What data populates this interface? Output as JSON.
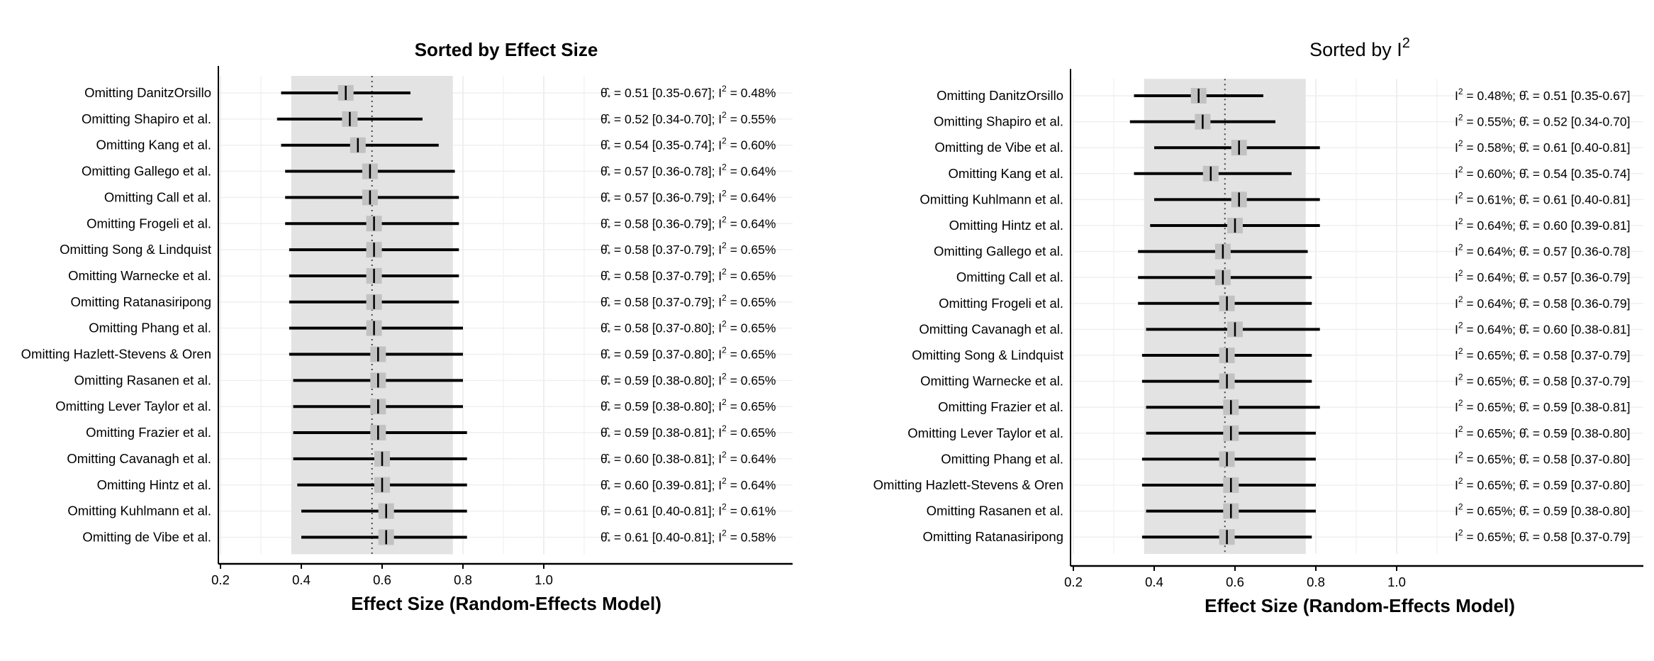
{
  "chart_data": [
    {
      "type": "forest",
      "title": "Sorted by Effect Size",
      "title_superscript": "",
      "title_bold": true,
      "xlabel": "Effect Size (Random-Effects Model)",
      "ylabel": "",
      "xlim": [
        0.2,
        1.15
      ],
      "xticks": [
        0.2,
        0.4,
        0.6,
        0.8,
        1.0
      ],
      "xtick_labels": [
        "0.2",
        "0.4",
        "0.6",
        "0.8",
        "1.0"
      ],
      "pooled_estimate": 0.575,
      "shaded_interval": [
        0.375,
        0.775
      ],
      "label_order": "theta-first",
      "rows": [
        {
          "label": "Omitting DanitzOrsillo",
          "est": 0.51,
          "lo": 0.35,
          "hi": 0.67,
          "i2": "0.48%"
        },
        {
          "label": "Omitting Shapiro et al.",
          "est": 0.52,
          "lo": 0.34,
          "hi": 0.7,
          "i2": "0.55%"
        },
        {
          "label": "Omitting Kang et al.",
          "est": 0.54,
          "lo": 0.35,
          "hi": 0.74,
          "i2": "0.60%"
        },
        {
          "label": "Omitting Gallego et al.",
          "est": 0.57,
          "lo": 0.36,
          "hi": 0.78,
          "i2": "0.64%"
        },
        {
          "label": "Omitting Call et al.",
          "est": 0.57,
          "lo": 0.36,
          "hi": 0.79,
          "i2": "0.64%"
        },
        {
          "label": "Omitting Frogeli et al.",
          "est": 0.58,
          "lo": 0.36,
          "hi": 0.79,
          "i2": "0.64%"
        },
        {
          "label": "Omitting Song & Lindquist",
          "est": 0.58,
          "lo": 0.37,
          "hi": 0.79,
          "i2": "0.65%"
        },
        {
          "label": "Omitting Warnecke et al.",
          "est": 0.58,
          "lo": 0.37,
          "hi": 0.79,
          "i2": "0.65%"
        },
        {
          "label": "Omitting Ratanasiripong",
          "est": 0.58,
          "lo": 0.37,
          "hi": 0.79,
          "i2": "0.65%"
        },
        {
          "label": "Omitting Phang et al.",
          "est": 0.58,
          "lo": 0.37,
          "hi": 0.8,
          "i2": "0.65%"
        },
        {
          "label": "Omitting Hazlett-Stevens & Oren",
          "est": 0.59,
          "lo": 0.37,
          "hi": 0.8,
          "i2": "0.65%"
        },
        {
          "label": "Omitting Rasanen et al.",
          "est": 0.59,
          "lo": 0.38,
          "hi": 0.8,
          "i2": "0.65%"
        },
        {
          "label": "Omitting Lever Taylor et al.",
          "est": 0.59,
          "lo": 0.38,
          "hi": 0.8,
          "i2": "0.65%"
        },
        {
          "label": "Omitting Frazier et al.",
          "est": 0.59,
          "lo": 0.38,
          "hi": 0.81,
          "i2": "0.65%"
        },
        {
          "label": "Omitting Cavanagh et al.",
          "est": 0.6,
          "lo": 0.38,
          "hi": 0.81,
          "i2": "0.64%"
        },
        {
          "label": "Omitting Hintz et al.",
          "est": 0.6,
          "lo": 0.39,
          "hi": 0.81,
          "i2": "0.64%"
        },
        {
          "label": "Omitting Kuhlmann et al.",
          "est": 0.61,
          "lo": 0.4,
          "hi": 0.81,
          "i2": "0.61%"
        },
        {
          "label": "Omitting de Vibe et al.",
          "est": 0.61,
          "lo": 0.4,
          "hi": 0.81,
          "i2": "0.58%"
        }
      ]
    },
    {
      "type": "forest",
      "title": "Sorted by I",
      "title_superscript": "2",
      "title_bold": false,
      "xlabel": "Effect Size (Random-Effects Model)",
      "ylabel": "",
      "xlim": [
        0.2,
        1.15
      ],
      "xticks": [
        0.2,
        0.4,
        0.6,
        0.8,
        1.0
      ],
      "xtick_labels": [
        "0.2",
        "0.4",
        "0.6",
        "0.8",
        "1.0"
      ],
      "pooled_estimate": 0.575,
      "shaded_interval": [
        0.375,
        0.775
      ],
      "label_order": "i2-first",
      "rows": [
        {
          "label": "Omitting DanitzOrsillo",
          "est": 0.51,
          "lo": 0.35,
          "hi": 0.67,
          "i2": "0.48%"
        },
        {
          "label": "Omitting Shapiro et al.",
          "est": 0.52,
          "lo": 0.34,
          "hi": 0.7,
          "i2": "0.55%"
        },
        {
          "label": "Omitting de Vibe et al.",
          "est": 0.61,
          "lo": 0.4,
          "hi": 0.81,
          "i2": "0.58%"
        },
        {
          "label": "Omitting Kang et al.",
          "est": 0.54,
          "lo": 0.35,
          "hi": 0.74,
          "i2": "0.60%"
        },
        {
          "label": "Omitting Kuhlmann et al.",
          "est": 0.61,
          "lo": 0.4,
          "hi": 0.81,
          "i2": "0.61%"
        },
        {
          "label": "Omitting Hintz et al.",
          "est": 0.6,
          "lo": 0.39,
          "hi": 0.81,
          "i2": "0.64%"
        },
        {
          "label": "Omitting Gallego et al.",
          "est": 0.57,
          "lo": 0.36,
          "hi": 0.78,
          "i2": "0.64%"
        },
        {
          "label": "Omitting Call et al.",
          "est": 0.57,
          "lo": 0.36,
          "hi": 0.79,
          "i2": "0.64%"
        },
        {
          "label": "Omitting Frogeli et al.",
          "est": 0.58,
          "lo": 0.36,
          "hi": 0.79,
          "i2": "0.64%"
        },
        {
          "label": "Omitting Cavanagh et al.",
          "est": 0.6,
          "lo": 0.38,
          "hi": 0.81,
          "i2": "0.64%"
        },
        {
          "label": "Omitting Song & Lindquist",
          "est": 0.58,
          "lo": 0.37,
          "hi": 0.79,
          "i2": "0.65%"
        },
        {
          "label": "Omitting Warnecke et al.",
          "est": 0.58,
          "lo": 0.37,
          "hi": 0.79,
          "i2": "0.65%"
        },
        {
          "label": "Omitting Frazier et al.",
          "est": 0.59,
          "lo": 0.38,
          "hi": 0.81,
          "i2": "0.65%"
        },
        {
          "label": "Omitting Lever Taylor et al.",
          "est": 0.59,
          "lo": 0.38,
          "hi": 0.8,
          "i2": "0.65%"
        },
        {
          "label": "Omitting Phang et al.",
          "est": 0.58,
          "lo": 0.37,
          "hi": 0.8,
          "i2": "0.65%"
        },
        {
          "label": "Omitting Hazlett-Stevens & Oren",
          "est": 0.59,
          "lo": 0.37,
          "hi": 0.8,
          "i2": "0.65%"
        },
        {
          "label": "Omitting Rasanen et al.",
          "est": 0.59,
          "lo": 0.38,
          "hi": 0.8,
          "i2": "0.65%"
        },
        {
          "label": "Omitting Ratanasiripong",
          "est": 0.58,
          "lo": 0.37,
          "hi": 0.79,
          "i2": "0.65%"
        }
      ]
    }
  ],
  "colors": {
    "shade": "#e3e3e3",
    "grid": "#efefef",
    "ink": "#000000",
    "point_box": "#c2c2c2"
  }
}
